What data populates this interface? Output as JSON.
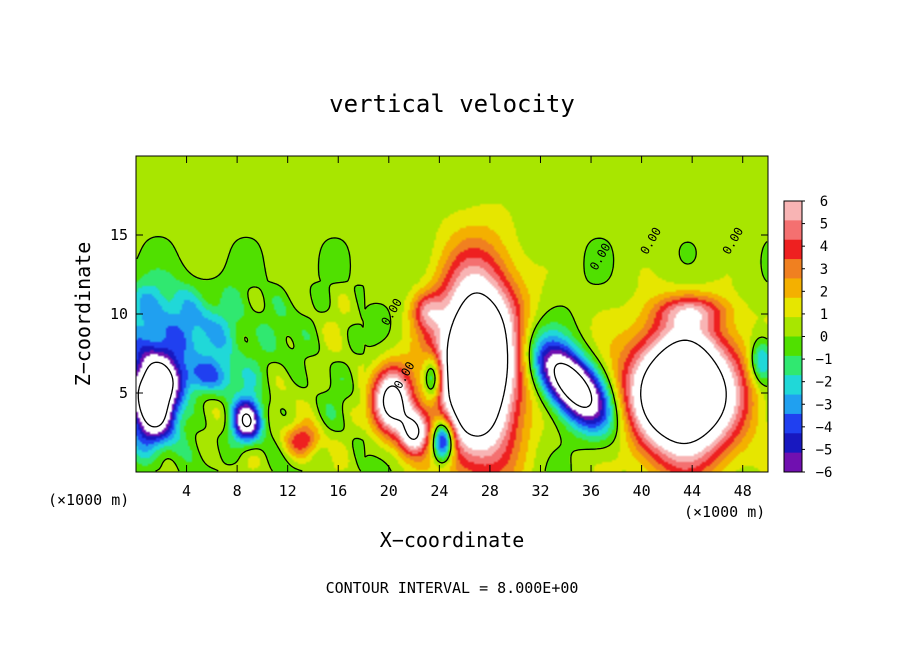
{
  "chart_data": {
    "type": "heatmap",
    "title": "vertical velocity",
    "xlabel": "X−coordinate",
    "ylabel": "Z−coordinate",
    "x_unit_left": "(×1000 m)",
    "x_unit_right": "(×1000 m)",
    "footer": "CONTOUR INTERVAL = 8.000E+00",
    "xlim": [
      0,
      50
    ],
    "ylim": [
      0,
      20
    ],
    "x_ticks": [
      {
        "value": 4,
        "label": "4"
      },
      {
        "value": 8,
        "label": "8"
      },
      {
        "value": 12,
        "label": "12"
      },
      {
        "value": 16,
        "label": "16"
      },
      {
        "value": 20,
        "label": "20"
      },
      {
        "value": 24,
        "label": "24"
      },
      {
        "value": 28,
        "label": "28"
      },
      {
        "value": 32,
        "label": "32"
      },
      {
        "value": 36,
        "label": "36"
      },
      {
        "value": 40,
        "label": "40"
      },
      {
        "value": 44,
        "label": "44"
      },
      {
        "value": 48,
        "label": "48"
      }
    ],
    "y_ticks": [
      {
        "value": 5,
        "label": "5"
      },
      {
        "value": 10,
        "label": "10"
      },
      {
        "value": 15,
        "label": "15"
      }
    ],
    "colorbar": {
      "min": -6,
      "max": 6,
      "labels": [
        "6",
        "5",
        "4",
        "3",
        "2",
        "1",
        "0",
        "−1",
        "−2",
        "−3",
        "−4",
        "−5",
        "−6"
      ],
      "colors": [
        "#f8b4b4",
        "#f47070",
        "#ee2020",
        "#f08020",
        "#f4b000",
        "#e6e600",
        "#a8e600",
        "#50e000",
        "#30e870",
        "#20d8d8",
        "#20a0f0",
        "#2040f0",
        "#1818c0",
        "#7010b0"
      ]
    },
    "contour_labels": [
      {
        "x": 20.5,
        "y": 10.0,
        "text": "0.00"
      },
      {
        "x": 21.5,
        "y": 6.0,
        "text": "0.00"
      },
      {
        "x": 37.0,
        "y": 13.5,
        "text": "0.00"
      },
      {
        "x": 41.0,
        "y": 14.5,
        "text": "0.00"
      },
      {
        "x": 47.5,
        "y": 14.5,
        "text": "0.00"
      }
    ],
    "features": [
      {
        "kind": "up",
        "x": 27.0,
        "y": 6.8,
        "rx": 3.4,
        "ry": 6.2,
        "peak": 14
      },
      {
        "kind": "up",
        "x": 43.3,
        "y": 5.0,
        "rx": 4.4,
        "ry": 4.3,
        "peak": 14
      },
      {
        "kind": "up",
        "x": 20.3,
        "y": 4.5,
        "rx": 1.6,
        "ry": 2.2,
        "peak": 9
      },
      {
        "kind": "up",
        "x": 22.0,
        "y": 2.5,
        "rx": 1.2,
        "ry": 1.5,
        "peak": 7
      },
      {
        "kind": "up",
        "x": 13.2,
        "y": 2.0,
        "rx": 1.5,
        "ry": 1.1,
        "peak": 4
      },
      {
        "kind": "up",
        "x": 44.0,
        "y": 10.2,
        "rx": 3.0,
        "ry": 1.0,
        "peak": 3
      },
      {
        "kind": "up",
        "x": 23.0,
        "y": 10.2,
        "rx": 1.2,
        "ry": 1.2,
        "peak": 3
      },
      {
        "kind": "down",
        "x": 34.5,
        "y": 5.5,
        "rx": 3.8,
        "ry": 1.8,
        "rot": -40,
        "peak": -11
      },
      {
        "kind": "down",
        "x": 1.4,
        "y": 4.8,
        "rx": 2.0,
        "ry": 3.0,
        "peak": -12
      },
      {
        "kind": "down",
        "x": 8.8,
        "y": 3.2,
        "rx": 1.2,
        "ry": 1.4,
        "peak": -8
      },
      {
        "kind": "down",
        "x": 24.3,
        "y": 2.0,
        "rx": 0.9,
        "ry": 1.4,
        "peak": -8
      },
      {
        "kind": "down",
        "x": 23.5,
        "y": 6.0,
        "rx": 0.8,
        "ry": 1.5,
        "peak": -5
      },
      {
        "kind": "down",
        "x": 49.5,
        "y": 7.0,
        "rx": 1.0,
        "ry": 1.5,
        "peak": -4
      },
      {
        "kind": "down",
        "x": 5.0,
        "y": 8.8,
        "rx": 5.5,
        "ry": 2.8,
        "peak": -2.5
      },
      {
        "kind": "down",
        "x": 1.5,
        "y": 10.5,
        "rx": 2.5,
        "ry": 2.0,
        "peak": -2
      },
      {
        "kind": "down",
        "x": 5.5,
        "y": 6.0,
        "rx": 3.0,
        "ry": 1.2,
        "peak": -3
      }
    ]
  }
}
